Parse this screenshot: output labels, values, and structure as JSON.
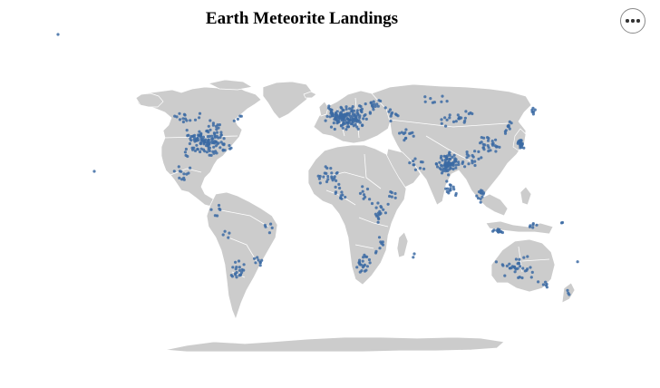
{
  "title": "Earth Meteorite Landings",
  "menu": {
    "icon": "more-horizontal-icon"
  },
  "colors": {
    "land": "#cccccc",
    "border": "#ffffff",
    "point": "#3b6aa3",
    "background": "#ffffff"
  },
  "map": {
    "projection": "equirectangular",
    "marker": "circle"
  }
}
